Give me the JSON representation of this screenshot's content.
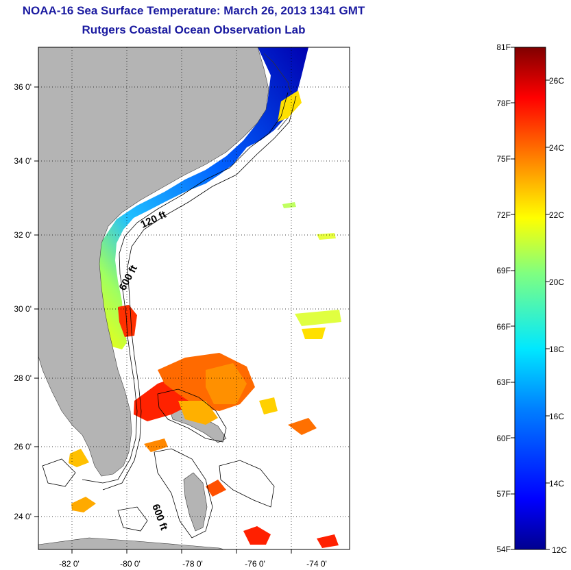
{
  "title": "NOAA-16 Sea Surface Temperature:  March 26, 2013 1341 GMT",
  "subtitle": "Rutgers Coastal Ocean Observation Lab",
  "map": {
    "lon_labels": [
      "-82 0'",
      "-80 0'",
      "-78 0'",
      "-76 0'",
      "-74 0'"
    ],
    "lat_labels": [
      "36 0'",
      "34 0'",
      "32 0'",
      "30 0'",
      "28 0'",
      "26 0'",
      "24 0'"
    ],
    "contour_labels": [
      "120 ft",
      "600 ft",
      "600 ft"
    ],
    "land_color": "#b4b4b4",
    "ocean_color": "#ffffff"
  },
  "colorbar": {
    "fahrenheit_labels": [
      "81F",
      "78F",
      "75F",
      "72F",
      "69F",
      "66F",
      "63F",
      "60F",
      "57F",
      "54F"
    ],
    "celsius_labels": [
      "26C",
      "24C",
      "22C",
      "20C",
      "18C",
      "16C",
      "14C",
      "12C"
    ],
    "colors": [
      "#00008f",
      "#0000ff",
      "#0080ff",
      "#00ffff",
      "#80ff80",
      "#ffff00",
      "#ff8000",
      "#ff0000",
      "#800000"
    ]
  }
}
